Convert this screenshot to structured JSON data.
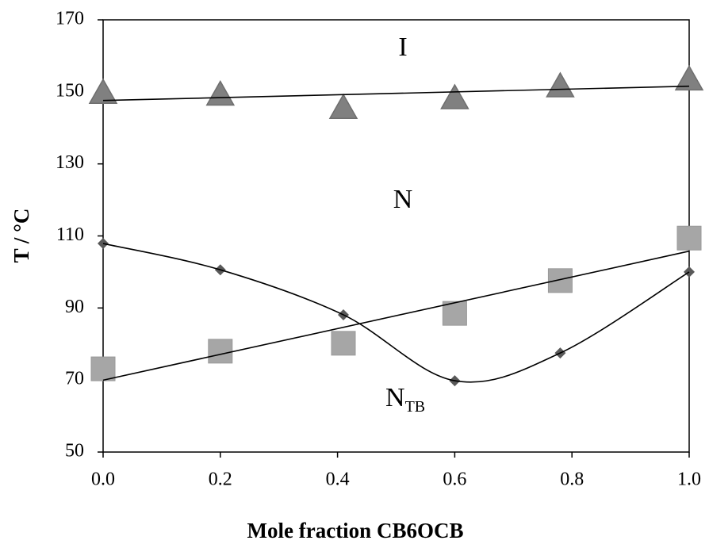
{
  "chart_data": {
    "type": "scatter",
    "x_label": "Mole fraction CB6OCB",
    "y_label": "T / °C",
    "x": [
      0,
      0.2,
      0.41,
      0.6,
      0.78,
      1.0
    ],
    "series": [
      {
        "color": "#808080",
        "marker": "triangle",
        "fit": "linear",
        "values": [
          149.7,
          149.2,
          145.5,
          148.2,
          151.5,
          153.4
        ]
      },
      {
        "color": "#a6a6a6",
        "marker": "square",
        "fit": "linear",
        "values": [
          73.1,
          78,
          80.2,
          88.5,
          97.6,
          109.4
        ]
      },
      {
        "color": "#595959",
        "marker": "diamond",
        "fit": "smooth",
        "values": [
          107.9,
          100.6,
          88.1,
          69.8,
          77.5,
          100
        ]
      }
    ],
    "annotations": [
      {
        "text": "I"
      },
      {
        "text": "N"
      },
      {
        "text": "N",
        "subscript": "TB"
      }
    ],
    "xlim": [
      0,
      1.0
    ],
    "ylim": [
      50,
      170
    ],
    "xticks": [
      {
        "value": 0,
        "label": "0.0"
      },
      0.2,
      0.4,
      0.6,
      0.8,
      {
        "value": 1.0,
        "label": "1.0"
      }
    ],
    "yticks": [
      50,
      70,
      90,
      110,
      130,
      150,
      170
    ],
    "grid": false
  }
}
